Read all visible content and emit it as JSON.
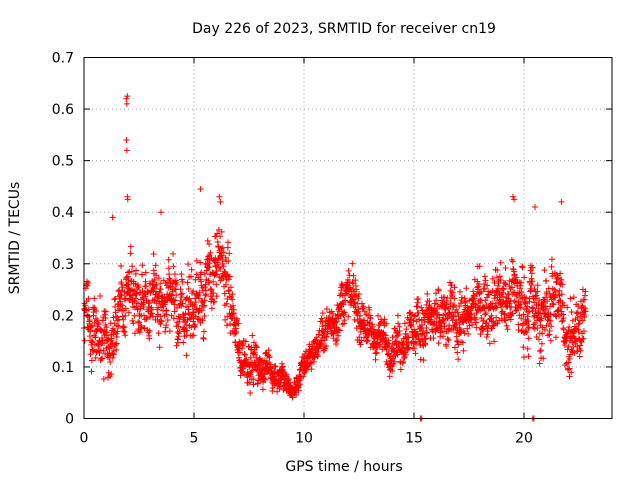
{
  "chart_data": {
    "type": "scatter",
    "title": "Day 226 of 2023, SRMTID for receiver cn19",
    "xlabel": "GPS time / hours",
    "ylabel": "SRMTID / TECUs",
    "xlim": [
      0,
      24
    ],
    "ylim": [
      0,
      0.7
    ],
    "x_ticks": [
      0,
      5,
      10,
      15,
      20
    ],
    "x_tick_labels": [
      "0",
      "5",
      "10",
      "15",
      "20"
    ],
    "y_ticks": [
      0,
      0.1,
      0.2,
      0.3,
      0.4,
      0.5,
      0.6,
      0.7
    ],
    "y_tick_labels": [
      "0",
      "0.1",
      "0.2",
      "0.3",
      "0.4",
      "0.5",
      "0.6",
      "0.7"
    ],
    "grid": true,
    "marker": "+",
    "color": "#ff0000",
    "trend": {
      "x": [
        0,
        0.5,
        1,
        1.5,
        2,
        3,
        4,
        5,
        5.5,
        6,
        6.5,
        7,
        8,
        9,
        9.5,
        10,
        11,
        12,
        13,
        14,
        15,
        16,
        17,
        18,
        19,
        20,
        21,
        21.5,
        22,
        22.8
      ],
      "y": [
        0.23,
        0.16,
        0.15,
        0.19,
        0.25,
        0.23,
        0.21,
        0.22,
        0.26,
        0.29,
        0.27,
        0.13,
        0.1,
        0.08,
        0.05,
        0.1,
        0.17,
        0.24,
        0.17,
        0.14,
        0.17,
        0.19,
        0.19,
        0.22,
        0.24,
        0.22,
        0.2,
        0.26,
        0.15,
        0.22
      ]
    },
    "spread": {
      "x": [
        0,
        2,
        5,
        6.5,
        7,
        9,
        9.5,
        10,
        12,
        14,
        16,
        18,
        20,
        22,
        22.8
      ],
      "y": [
        0.07,
        0.07,
        0.07,
        0.08,
        0.05,
        0.03,
        0.015,
        0.03,
        0.05,
        0.04,
        0.06,
        0.06,
        0.08,
        0.08,
        0.06
      ]
    },
    "outliers": [
      {
        "x": 1.92,
        "y": 0.62
      },
      {
        "x": 1.95,
        "y": 0.61
      },
      {
        "x": 1.97,
        "y": 0.625
      },
      {
        "x": 1.93,
        "y": 0.54
      },
      {
        "x": 1.95,
        "y": 0.52
      },
      {
        "x": 1.97,
        "y": 0.43
      },
      {
        "x": 1.99,
        "y": 0.425
      },
      {
        "x": 5.3,
        "y": 0.445
      },
      {
        "x": 6.15,
        "y": 0.43
      },
      {
        "x": 6.2,
        "y": 0.42
      },
      {
        "x": 19.5,
        "y": 0.43
      },
      {
        "x": 19.55,
        "y": 0.425
      },
      {
        "x": 21.7,
        "y": 0.42
      },
      {
        "x": 20.5,
        "y": 0.41
      },
      {
        "x": 1.3,
        "y": 0.39
      },
      {
        "x": 3.5,
        "y": 0.4
      },
      {
        "x": 15.3,
        "y": 0.0
      },
      {
        "x": 15.35,
        "y": 0.0
      },
      {
        "x": 20.4,
        "y": 0.0
      },
      {
        "x": 20.45,
        "y": 0.0
      }
    ],
    "sample_step_hours": 0.0095,
    "data_end_hour": 22.8
  }
}
